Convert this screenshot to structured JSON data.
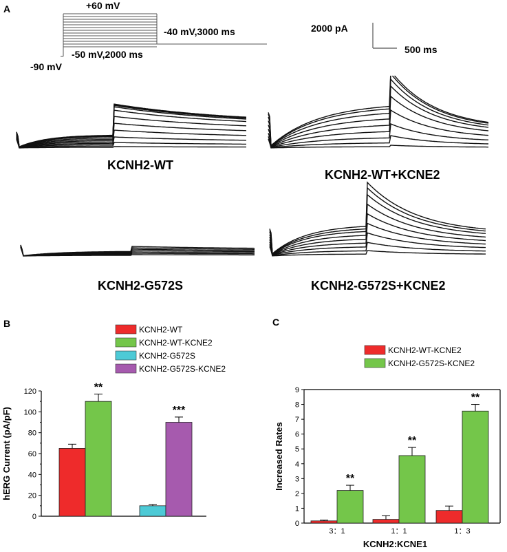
{
  "panel_a": {
    "letter": "A",
    "protocol": {
      "top_label": "+60 mV",
      "hold_label": "-90 mV",
      "pre_label": "-50 mV,2000 ms",
      "tail_label": "-40 mV,3000 ms"
    },
    "scale_bar": {
      "current_label": "2000 pA",
      "time_label": "500 ms"
    },
    "traces": [
      {
        "label": "KCNH2-WT"
      },
      {
        "label": "KCNH2-WT+KCNE2"
      },
      {
        "label": "KCNH2-G572S"
      },
      {
        "label": "KCNH2-G572S+KCNE2"
      }
    ]
  },
  "chart_data": [
    {
      "panel": "B",
      "type": "bar",
      "ylabel": "hERG Current (pA/pF)",
      "ylim": [
        0,
        120
      ],
      "yticks": [
        0,
        20,
        40,
        60,
        80,
        100,
        120
      ],
      "legend": [
        {
          "name": "KCNH2-WT",
          "color": "#ee2b2b"
        },
        {
          "name": "KCNH2-WT-KCNE2",
          "color": "#74c64a"
        },
        {
          "name": "KCNH2-G572S",
          "color": "#4dcad6"
        },
        {
          "name": "KCNH2-G572S-KCNE2",
          "color": "#a65aae"
        }
      ],
      "series": [
        {
          "name": "KCNH2-WT",
          "values": [
            65
          ],
          "error": [
            4
          ]
        },
        {
          "name": "KCNH2-WT-KCNE2",
          "values": [
            110
          ],
          "error": [
            7
          ],
          "sig": "**"
        },
        {
          "name": "KCNH2-G572S",
          "values": [
            10
          ],
          "error": [
            1.2
          ]
        },
        {
          "name": "KCNH2-G572S-KCNE2",
          "values": [
            90
          ],
          "error": [
            5
          ],
          "sig": "***"
        }
      ]
    },
    {
      "panel": "C",
      "type": "bar",
      "ylabel": "Increased Rates",
      "xlabel": "KCNH2:KCNE1",
      "categories": [
        "3：1",
        "1：1",
        "1：3"
      ],
      "ylim": [
        0,
        9
      ],
      "yticks": [
        0,
        1,
        2,
        3,
        4,
        5,
        6,
        7,
        8,
        9
      ],
      "series": [
        {
          "name": "KCNH2-WT-KCNE2",
          "color": "#ee2b2b",
          "values": [
            0.15,
            0.25,
            0.85
          ],
          "error": [
            0.05,
            0.25,
            0.3
          ]
        },
        {
          "name": "KCNH2-G572S-KCNE2",
          "color": "#74c64a",
          "values": [
            2.2,
            4.55,
            7.55
          ],
          "error": [
            0.35,
            0.55,
            0.45
          ],
          "sig": [
            "**",
            "**",
            "**"
          ]
        }
      ]
    }
  ],
  "panel_b": {
    "letter": "B"
  },
  "panel_c": {
    "letter": "C"
  }
}
